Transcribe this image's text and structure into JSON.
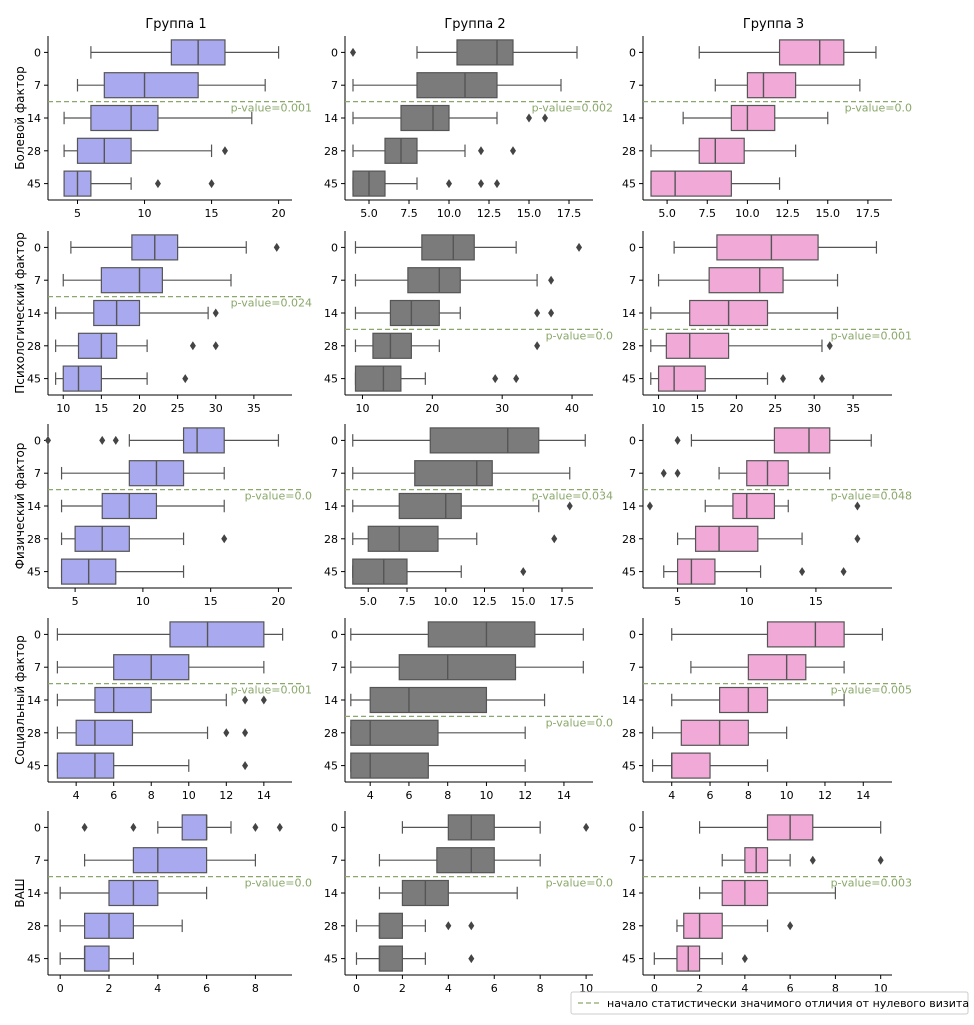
{
  "chart_data": {
    "type": "boxplot",
    "columns": [
      "Группа 1",
      "Группа 2",
      "Группа 3"
    ],
    "rows": [
      "Болевой фактор",
      "Психологический фактор",
      "Физический фактор",
      "Социальный фактор",
      "ВАШ"
    ],
    "categories": [
      "0",
      "7",
      "14",
      "28",
      "45"
    ],
    "colors": {
      "Группа 1": "#a9a9ef",
      "Группа 2": "#7b7b7b",
      "Группа 3": "#f1a9d8",
      "pvalue": "#8aa86a",
      "line": "#555555",
      "outlier": "#444444"
    },
    "legend": "начало статистически значимого отличия от нулевого визита",
    "panels": [
      {
        "row": 0,
        "col": 0,
        "xlim": [
          2.8,
          21
        ],
        "xticks": [
          5,
          10,
          15,
          20
        ],
        "boxes": [
          [
            6,
            12,
            14,
            16,
            20
          ],
          [
            5,
            7,
            10,
            14,
            19
          ],
          [
            4,
            6,
            9,
            11,
            18
          ],
          [
            4,
            5,
            7,
            9,
            15
          ],
          [
            4,
            4,
            5,
            6,
            9
          ]
        ],
        "outliers": [
          [],
          [],
          [],
          [
            16
          ],
          [
            11,
            15
          ]
        ],
        "pvalue": "p-value=0.001",
        "sig_after": 1
      },
      {
        "row": 0,
        "col": 1,
        "xlim": [
          3.5,
          19
        ],
        "xticks": [
          5.0,
          7.5,
          10.0,
          12.5,
          15.0,
          17.5
        ],
        "boxes": [
          [
            8,
            10.5,
            13,
            14,
            18
          ],
          [
            4,
            8,
            11,
            13,
            17
          ],
          [
            4,
            7,
            9,
            10,
            13
          ],
          [
            4,
            6,
            7,
            8,
            11
          ],
          [
            4,
            4,
            5,
            6,
            8
          ]
        ],
        "outliers": [
          [
            4
          ],
          [],
          [
            15,
            16
          ],
          [
            12,
            14
          ],
          [
            10,
            12,
            13
          ]
        ],
        "pvalue": "p-value=0.002",
        "sig_after": 1
      },
      {
        "row": 0,
        "col": 2,
        "xlim": [
          3.5,
          19
        ],
        "xticks": [
          5.0,
          7.5,
          10.0,
          12.5,
          15.0,
          17.5
        ],
        "boxes": [
          [
            7,
            12,
            14.5,
            16,
            18
          ],
          [
            8,
            10,
            11,
            13,
            17
          ],
          [
            6,
            9,
            10,
            11.7,
            15
          ],
          [
            4,
            7,
            8,
            9.8,
            13
          ],
          [
            4,
            4,
            5.5,
            9,
            12
          ]
        ],
        "outliers": [
          [],
          [],
          [],
          [],
          []
        ],
        "pvalue": "p-value=0.0",
        "sig_after": 1
      },
      {
        "row": 1,
        "col": 0,
        "xlim": [
          8,
          40
        ],
        "xticks": [
          10,
          15,
          20,
          25,
          30,
          35
        ],
        "boxes": [
          [
            11,
            19,
            22,
            25,
            34
          ],
          [
            10,
            15,
            20,
            23,
            32
          ],
          [
            9,
            14,
            17,
            20,
            29
          ],
          [
            9,
            12,
            15,
            17,
            21
          ],
          [
            9,
            10,
            12,
            15,
            21
          ]
        ],
        "outliers": [
          [
            38
          ],
          [],
          [
            30
          ],
          [
            27,
            30
          ],
          [
            26
          ]
        ],
        "pvalue": "p-value=0.024",
        "sig_after": 1
      },
      {
        "row": 1,
        "col": 1,
        "xlim": [
          7.5,
          43
        ],
        "xticks": [
          10,
          20,
          30,
          40
        ],
        "boxes": [
          [
            9,
            18.5,
            23,
            26,
            32
          ],
          [
            9,
            16.5,
            21,
            24,
            35
          ],
          [
            9,
            14,
            17,
            21,
            24
          ],
          [
            9,
            11.5,
            14,
            17,
            21
          ],
          [
            9,
            9,
            13,
            15.5,
            19
          ]
        ],
        "outliers": [
          [
            41
          ],
          [
            37
          ],
          [
            35,
            37
          ],
          [
            35
          ],
          [
            29,
            32
          ]
        ],
        "pvalue": "p-value=0.0",
        "sig_after": 2
      },
      {
        "row": 1,
        "col": 2,
        "xlim": [
          8,
          40
        ],
        "xticks": [
          10,
          15,
          20,
          25,
          30,
          35
        ],
        "boxes": [
          [
            12,
            17.5,
            24.5,
            30.5,
            38
          ],
          [
            10,
            16.5,
            23,
            26,
            33
          ],
          [
            9,
            14,
            19,
            24,
            33
          ],
          [
            9,
            11,
            14,
            19,
            31
          ],
          [
            9,
            10,
            12,
            16,
            24
          ]
        ],
        "outliers": [
          [],
          [],
          [],
          [
            32
          ],
          [
            26,
            31
          ]
        ],
        "pvalue": "p-value=0.001",
        "sig_after": 2
      },
      {
        "row": 2,
        "col": 0,
        "xlim": [
          3,
          21
        ],
        "xticks": [
          5,
          10,
          15,
          20
        ],
        "boxes": [
          [
            9,
            13,
            14,
            16,
            20
          ],
          [
            4,
            9,
            11,
            13,
            16
          ],
          [
            4,
            7,
            9,
            11,
            16
          ],
          [
            4,
            5,
            7,
            9,
            13
          ],
          [
            4,
            4,
            6,
            8,
            13
          ]
        ],
        "outliers": [
          [
            3,
            7,
            8
          ],
          [],
          [],
          [
            16
          ],
          []
        ],
        "pvalue": "p-value=0.0",
        "sig_after": 1
      },
      {
        "row": 2,
        "col": 1,
        "xlim": [
          3.5,
          19.5
        ],
        "xticks": [
          5.0,
          7.5,
          10.0,
          12.5,
          15.0,
          17.5
        ],
        "boxes": [
          [
            4,
            9,
            14,
            16,
            19
          ],
          [
            4,
            8,
            12,
            13,
            18
          ],
          [
            4,
            7,
            10,
            11,
            16
          ],
          [
            4,
            5,
            7,
            9.5,
            12
          ],
          [
            4,
            4,
            6,
            7.5,
            11
          ]
        ],
        "outliers": [
          [],
          [],
          [
            18
          ],
          [
            17
          ],
          [
            15
          ]
        ],
        "pvalue": "p-value=0.034",
        "sig_after": 1
      },
      {
        "row": 2,
        "col": 2,
        "xlim": [
          2.5,
          20.5
        ],
        "xticks": [
          5,
          10,
          15
        ],
        "boxes": [
          [
            6,
            12,
            14.5,
            16,
            19
          ],
          [
            8,
            10,
            11.5,
            13,
            16
          ],
          [
            7,
            9,
            10,
            12,
            13
          ],
          [
            5,
            6.3,
            8,
            10.8,
            14
          ],
          [
            4,
            5,
            6,
            7.7,
            11
          ]
        ],
        "outliers": [
          [
            5
          ],
          [
            4,
            5
          ],
          [
            3,
            18
          ],
          [
            18
          ],
          [
            14,
            17
          ]
        ],
        "pvalue": "p-value=0.048",
        "sig_after": 1
      },
      {
        "row": 3,
        "col": 0,
        "xlim": [
          2.5,
          15.5
        ],
        "xticks": [
          4,
          6,
          8,
          10,
          12,
          14
        ],
        "boxes": [
          [
            3,
            9,
            11,
            14,
            15
          ],
          [
            3,
            6,
            8,
            10,
            14
          ],
          [
            3,
            5,
            6,
            8,
            12
          ],
          [
            3,
            4,
            5,
            7,
            11
          ],
          [
            3,
            3,
            5,
            6,
            10
          ]
        ],
        "outliers": [
          [],
          [],
          [
            13,
            14
          ],
          [
            12,
            13
          ],
          [
            13
          ]
        ],
        "pvalue": "p-value=0.001",
        "sig_after": 1
      },
      {
        "row": 3,
        "col": 1,
        "xlim": [
          2.7,
          15.5
        ],
        "xticks": [
          4,
          6,
          8,
          10,
          12,
          14
        ],
        "boxes": [
          [
            3,
            7,
            10,
            12.5,
            15
          ],
          [
            3,
            5.5,
            8,
            11.5,
            15
          ],
          [
            3,
            4,
            6,
            10,
            13
          ],
          [
            3,
            3,
            4,
            7.5,
            12
          ],
          [
            3,
            3,
            4,
            7,
            12
          ]
        ],
        "outliers": [
          [],
          [],
          [],
          [],
          []
        ],
        "pvalue": "p-value=0.0",
        "sig_after": 2
      },
      {
        "row": 3,
        "col": 2,
        "xlim": [
          2.5,
          15.5
        ],
        "xticks": [
          4,
          6,
          8,
          10,
          12,
          14
        ],
        "boxes": [
          [
            4,
            9,
            11.5,
            13,
            15
          ],
          [
            5,
            8,
            10,
            11,
            13
          ],
          [
            4,
            6.5,
            8,
            9,
            13
          ],
          [
            3,
            4.5,
            6.5,
            8,
            10
          ],
          [
            3,
            4,
            4,
            6,
            9
          ]
        ],
        "outliers": [
          [],
          [],
          [],
          [],
          []
        ],
        "pvalue": "p-value=0.005",
        "sig_after": 1
      },
      {
        "row": 4,
        "col": 0,
        "xlim": [
          -0.5,
          9.5
        ],
        "xticks": [
          0,
          2,
          4,
          6,
          8
        ],
        "boxes": [
          [
            4,
            5,
            6,
            6,
            7
          ],
          [
            1,
            3,
            4,
            6,
            8
          ],
          [
            0,
            2,
            3,
            4,
            6
          ],
          [
            0,
            1,
            2,
            3,
            5
          ],
          [
            0,
            1,
            1,
            2,
            3
          ]
        ],
        "outliers": [
          [
            1,
            3,
            8,
            9
          ],
          [],
          [],
          [],
          []
        ],
        "pvalue": "p-value=0.0",
        "sig_after": 1
      },
      {
        "row": 4,
        "col": 1,
        "xlim": [
          -0.5,
          10.3
        ],
        "xticks": [
          0,
          2,
          4,
          6,
          8,
          10
        ],
        "boxes": [
          [
            2,
            4,
            5,
            6,
            8
          ],
          [
            1,
            3.5,
            5,
            6,
            8
          ],
          [
            1,
            2,
            3,
            4,
            7
          ],
          [
            0,
            1,
            1,
            2,
            3
          ],
          [
            0,
            1,
            1,
            2,
            3
          ]
        ],
        "outliers": [
          [
            10
          ],
          [],
          [],
          [
            4,
            5
          ],
          [
            5
          ]
        ],
        "pvalue": "p-value=0.0",
        "sig_after": 1
      },
      {
        "row": 4,
        "col": 2,
        "xlim": [
          -0.5,
          10.5
        ],
        "xticks": [
          0,
          2,
          4,
          6,
          8,
          10
        ],
        "boxes": [
          [
            2,
            5,
            6,
            7,
            10
          ],
          [
            3,
            4,
            4.5,
            5,
            6
          ],
          [
            2,
            3,
            4,
            5,
            8
          ],
          [
            1,
            1.3,
            2,
            3,
            5
          ],
          [
            0,
            1,
            1.5,
            2,
            3
          ]
        ],
        "outliers": [
          [],
          [
            7,
            10
          ],
          [],
          [
            6
          ],
          [
            4
          ]
        ],
        "pvalue": "p-value=0.003",
        "sig_after": 1
      }
    ]
  }
}
